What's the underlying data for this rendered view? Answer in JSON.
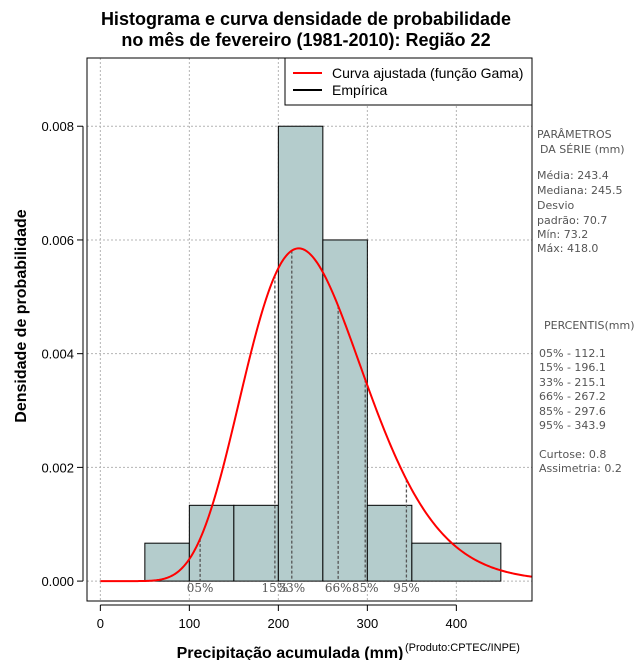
{
  "chart_data": {
    "type": "histogram",
    "title_lines": [
      "Histograma e curva densidade de probabilidade",
      "no mês de fevereiro (1981-2010): Região 22"
    ],
    "xlabel": "Precipitação acumulada (mm)",
    "ylabel": "Densidade de probabilidade",
    "credit": "(Produto:CPTEC/INPE)",
    "xlim": [
      -15,
      485
    ],
    "ylim": [
      -0.00035,
      0.0092
    ],
    "x_ticks": [
      0,
      100,
      200,
      300,
      400
    ],
    "y_ticks": [
      0.0,
      0.002,
      0.004,
      0.006,
      0.008
    ],
    "y_tick_labels": [
      "0.000",
      "0.002",
      "0.004",
      "0.006",
      "0.008"
    ],
    "grid": true,
    "bins": [
      {
        "start": 50,
        "end": 100,
        "density": 0.000667
      },
      {
        "start": 100,
        "end": 150,
        "density": 0.001333
      },
      {
        "start": 150,
        "end": 200,
        "density": 0.001333
      },
      {
        "start": 200,
        "end": 250,
        "density": 0.008
      },
      {
        "start": 250,
        "end": 300,
        "density": 0.006
      },
      {
        "start": 300,
        "end": 350,
        "density": 0.001333
      },
      {
        "start": 350,
        "end": 450,
        "density": 0.000667
      }
    ],
    "gamma_fit": {
      "mean": 243.4,
      "sd": 70.7
    },
    "legend": {
      "position": "top-right",
      "entries": [
        {
          "label": "Curva ajustada (função Gama)",
          "color": "#ff0000"
        },
        {
          "label": "Empírica",
          "color": "#000000"
        }
      ]
    },
    "percentile_markers": [
      {
        "label": "05%",
        "value": 112.1
      },
      {
        "label": "15%",
        "value": 196.1
      },
      {
        "label": "33%",
        "value": 215.1
      },
      {
        "label": "66%",
        "value": 267.2
      },
      {
        "label": "85%",
        "value": 297.6
      },
      {
        "label": "95%",
        "value": 343.9
      }
    ],
    "colors": {
      "bar_fill": "#b4cccc",
      "curve": "#ff0000",
      "grid": "#b4b4b4",
      "marker": "#555555"
    }
  },
  "side_panel": {
    "params_title_1": "PARÂMETROS",
    "params_title_2": "DA SÉRIE (mm)",
    "media": "Média:  243.4",
    "mediana": "Mediana:  245.5",
    "desvio_1": "Desvio",
    "desvio_2": "padrão:  70.7",
    "min": "Mín:  73.2",
    "max": "Máx:  418.0",
    "percentis_title": "PERCENTIS(mm)",
    "p05": "05% -   112.1",
    "p15": "15% -   196.1",
    "p33": "33% -   215.1",
    "p66": "66% -   267.2",
    "p85": "85% -   297.6",
    "p95": "95% -   343.9",
    "curtose": "Curtose:  0.8",
    "assimetria": "Assimetria:  0.2"
  }
}
